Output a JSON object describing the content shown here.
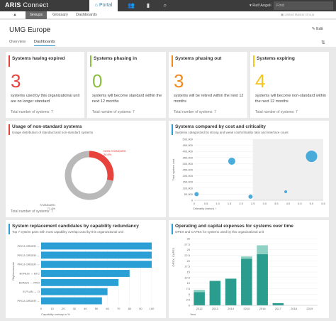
{
  "app": {
    "brand_bold": "ARIS",
    "brand_light": " Connect"
  },
  "topnav": {
    "portal_label": "Portal",
    "user_name": "Ralf Angeli",
    "search_placeholder": "Find"
  },
  "subnav": {
    "tabs": [
      "Groups",
      "Glossary",
      "Dashboards"
    ],
    "active_tab": "Groups",
    "org_label": "United Mastar Group"
  },
  "page": {
    "title": "UMG Europe",
    "edit_label": "Edit",
    "view_tabs": [
      "Overview",
      "Dashboards"
    ],
    "active_view_tab": "Dashboards"
  },
  "kpis": [
    {
      "title": "Systems having expired",
      "value": "3",
      "color": "#e8423c",
      "desc": "systems used by this organizational unit are no longer standard",
      "foot": "Total number of systems: 7"
    },
    {
      "title": "Systems phasing in",
      "value": "0",
      "color": "#8bbf3f",
      "desc": "systems will become standard within the next 12 months",
      "foot": "Total number of systems: 7"
    },
    {
      "title": "Systems phasing out",
      "value": "3",
      "color": "#f08a1c",
      "desc": "systems will be retired within the next 12 months",
      "foot": "Total number of systems: 7"
    },
    {
      "title": "Systems expiring",
      "value": "4",
      "color": "#f5c518",
      "desc": "systems will become non-standard within the next 12 months",
      "foot": "Total number of systems: 7"
    }
  ],
  "panels": {
    "usage": {
      "title": "Usage of non-standard systems",
      "subtitle": "Usage distribution of standard and non-standard systems",
      "foot": "Total number of systems: 7"
    },
    "cost": {
      "title": "Systems compared by cost and criticality",
      "subtitle": "Systems categorized by strong and weak cost/criticality ratio and interface count"
    },
    "replacement": {
      "title": "System replacement candidates by capability redundancy",
      "subtitle": "Top 7 system pairs with most capability overlap used by this organizational unit"
    },
    "expenses": {
      "title": "Operating and capital expenses for systems over time",
      "subtitle": "OPEX and CAPEX for systems used by this organizational unit"
    }
  },
  "chart_data": [
    {
      "type": "pie",
      "categories": [
        "NON-STANDARD",
        "STANDARD"
      ],
      "values": [
        28.6,
        71.4
      ],
      "labels": [
        "NON-STANDARD\n28.6%",
        "STANDARD\n71.4%"
      ],
      "colors": [
        "#e8423c",
        "#b9b9b9"
      ]
    },
    {
      "type": "scatter",
      "xlabel": "Criticality (mean) ↑",
      "ylabel": "Total system cost",
      "x_ticks": [
        "0",
        "0.5",
        "1.0",
        "1.5",
        "2.0",
        "2.5",
        "3.0",
        "3.5",
        "4.0",
        "4.5",
        "5.0",
        "5.5"
      ],
      "y_ticks": [
        "0",
        "50,000",
        "100,000",
        "150,000",
        "200,000",
        "250,000",
        "300,000",
        "350,000",
        "400,000",
        "450,000",
        "500,000"
      ],
      "xlim": [
        0,
        5.5
      ],
      "ylim": [
        0,
        500000
      ],
      "points": [
        {
          "x": 0.1,
          "y": 50000,
          "size": 2
        },
        {
          "x": 1.6,
          "y": 320000,
          "size": 4
        },
        {
          "x": 2.4,
          "y": 30000,
          "size": 2
        },
        {
          "x": 3.9,
          "y": 70000,
          "size": 1
        },
        {
          "x": 5.0,
          "y": 360000,
          "size": 7
        }
      ]
    },
    {
      "type": "bar",
      "orientation": "horizontal",
      "ylabel": "Replacements",
      "xlabel": "Capability overlap in %",
      "categories": [
        "PROJ-ORDER ↔",
        "PROJ-ORDER ↔",
        "PROJ-ORDER ↔",
        "BONUS ↔ BTC",
        "BONUS ↔ PRO",
        "E-PLAN ↔ O",
        "PROJ-ORDER ↔"
      ],
      "values": [
        100,
        100,
        100,
        80,
        70,
        60,
        55
      ],
      "xlim": [
        0,
        100
      ],
      "x_ticks": [
        "0",
        "10",
        "20",
        "30",
        "40",
        "50",
        "60",
        "70",
        "80",
        "90",
        "100"
      ]
    },
    {
      "type": "bar",
      "stacked": true,
      "xlabel": "Year",
      "ylabel": "OPEX, CAPEX",
      "categories": [
        "2012",
        "2013",
        "2014",
        "2015",
        "2016",
        "2017",
        "2018",
        "2019"
      ],
      "series": [
        {
          "name": "OPEX",
          "values": [
            6,
            11,
            12,
            21,
            23,
            1,
            0,
            0
          ]
        },
        {
          "name": "CAPEX",
          "values": [
            1,
            0,
            0,
            1,
            4,
            0,
            0,
            0
          ]
        }
      ],
      "ylim": [
        0,
        30
      ],
      "y_ticks": [
        "0",
        "2.5",
        "5",
        "7.5",
        "10",
        "12.5",
        "15",
        "17.5",
        "20",
        "22.5",
        "25",
        "27.5",
        "30"
      ]
    }
  ]
}
